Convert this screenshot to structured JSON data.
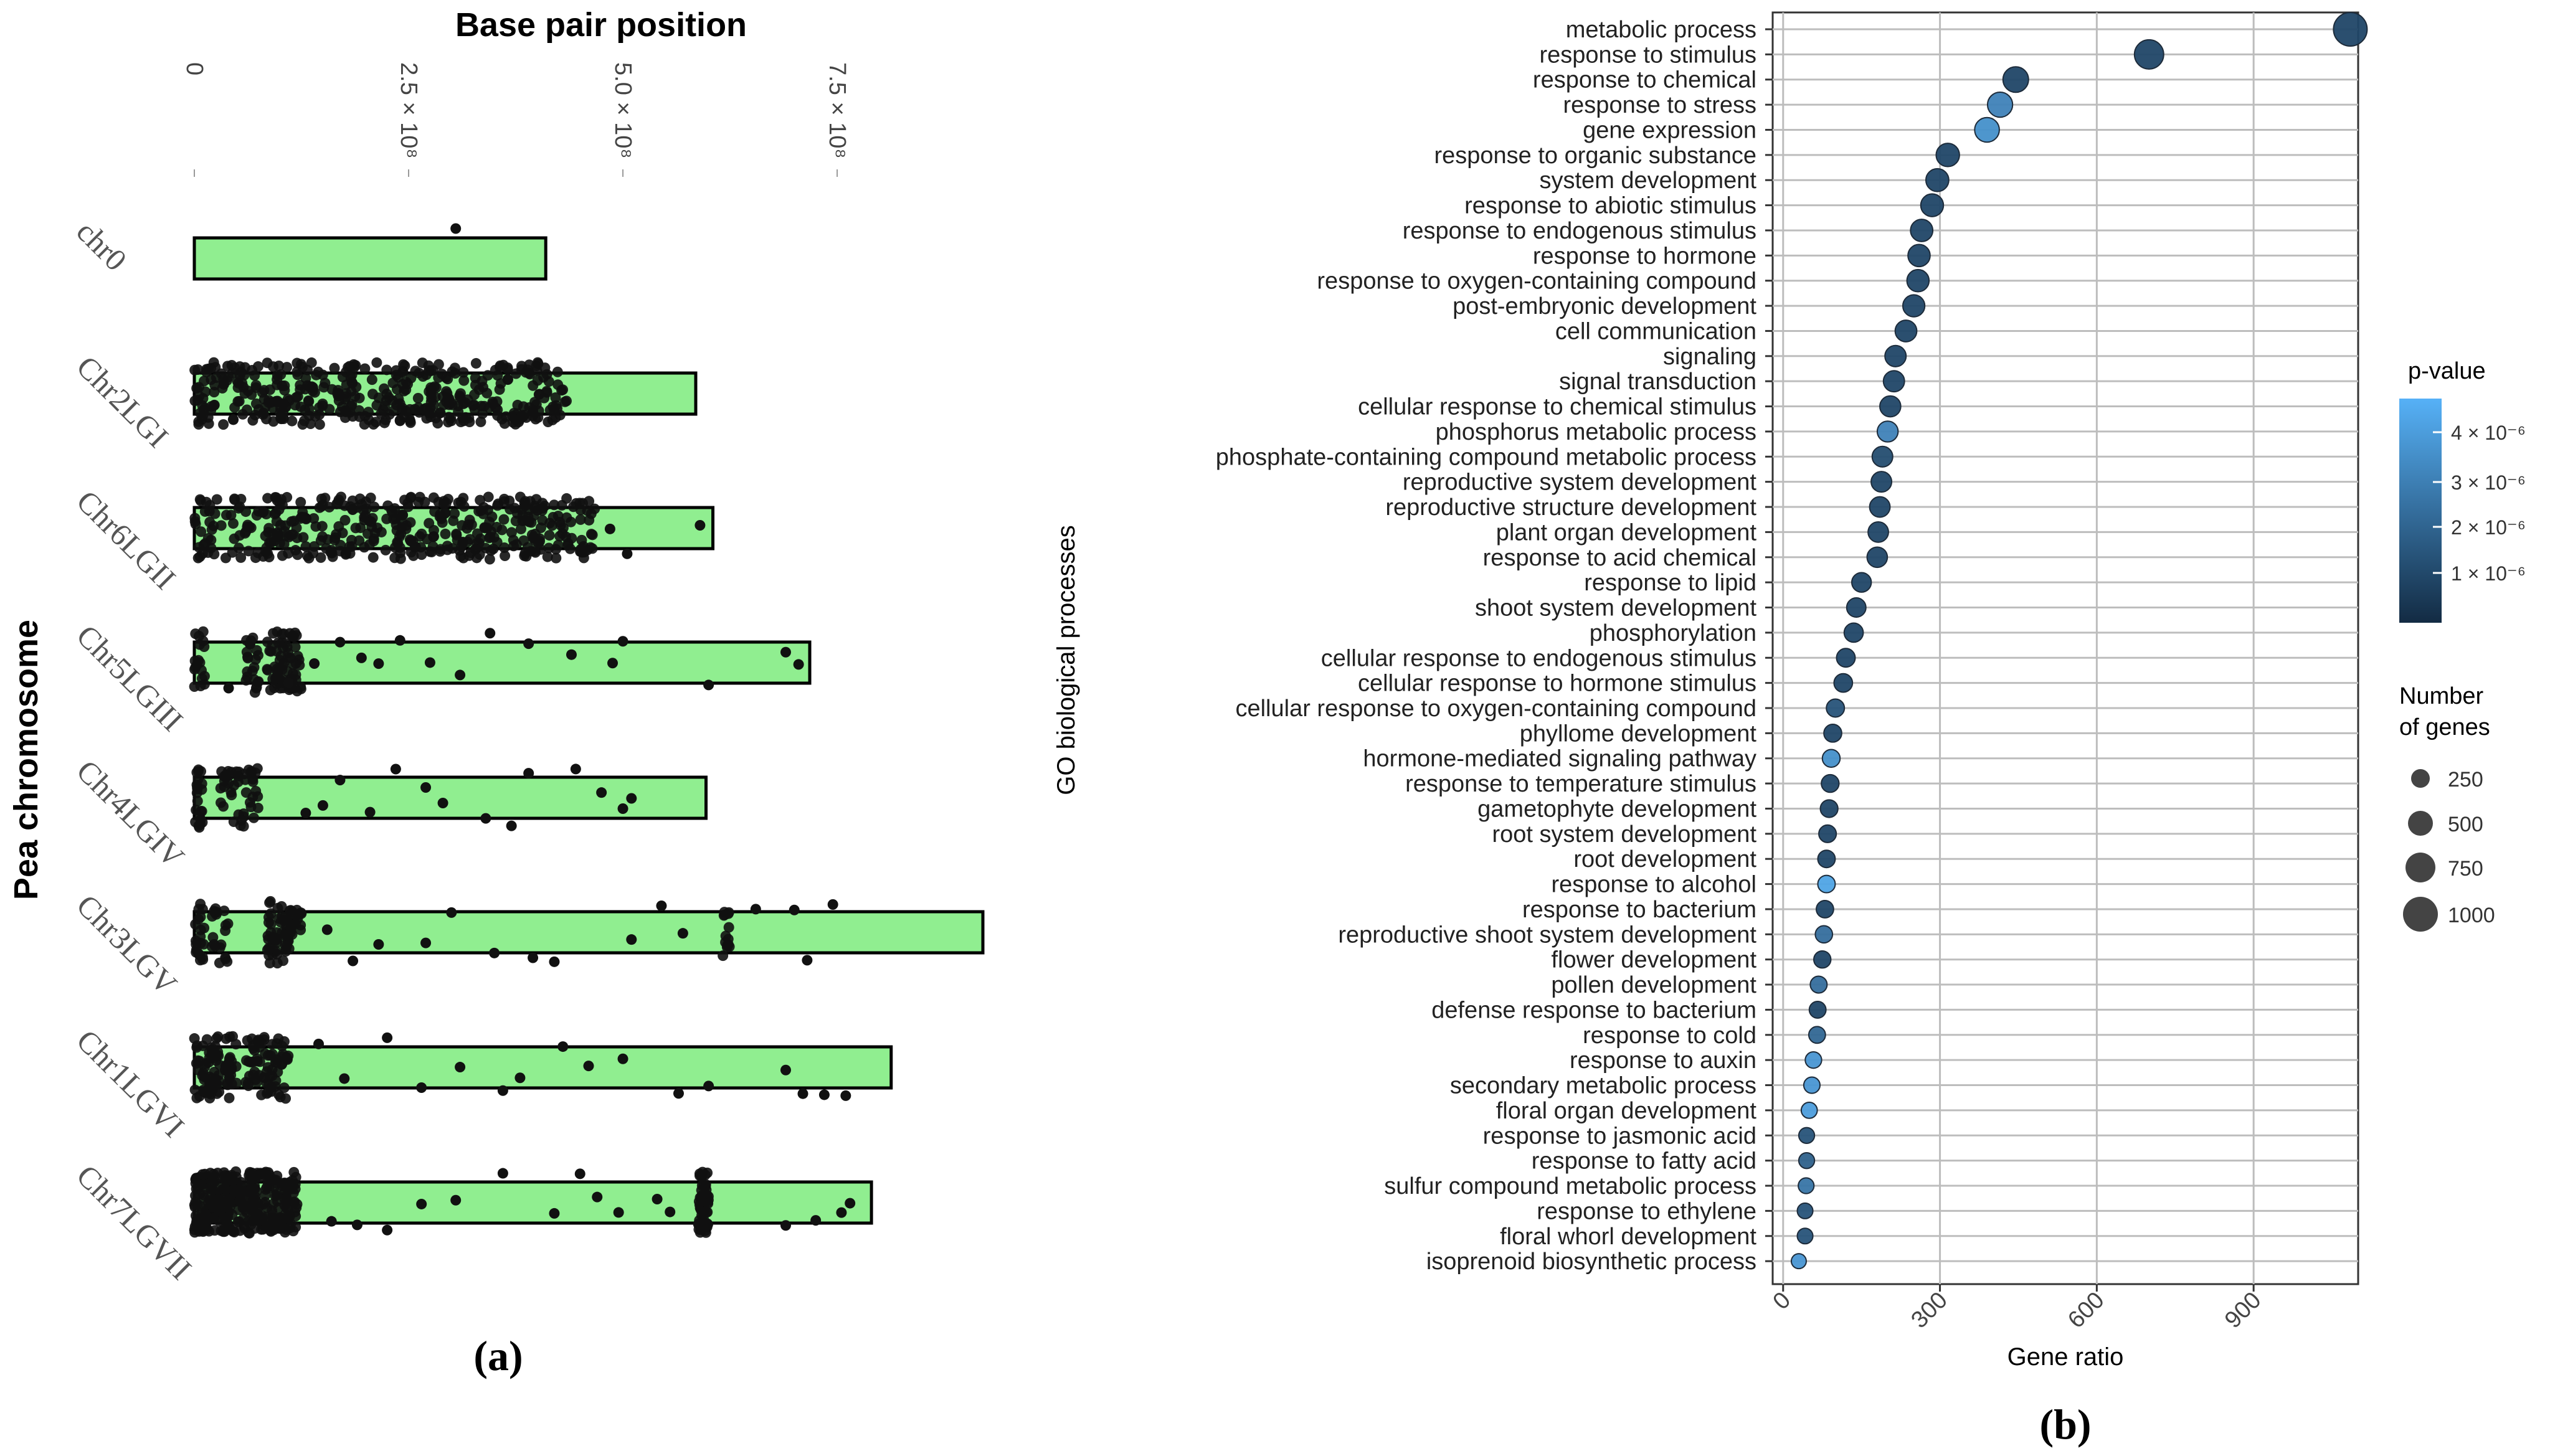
{
  "panel_a": {
    "label": "(a)",
    "chart_data": {
      "type": "scatter",
      "title": "Base pair position",
      "ylabel": "Pea chromosome",
      "x_ticks": [
        {
          "value": 0,
          "label": "0"
        },
        {
          "value": 250000000,
          "label": "2.5 × 10⁸"
        },
        {
          "value": 500000000,
          "label": "5.0 × 10⁸"
        },
        {
          "value": 750000000,
          "label": "7.5 × 10⁸"
        }
      ],
      "xlim": [
        0,
        920000000
      ],
      "chromosomes": [
        {
          "name": "chr0",
          "length": 410000000,
          "clusters": [],
          "points": [
            305000000
          ]
        },
        {
          "name": "Chr2LGI",
          "length": 585000000,
          "clusters": [
            {
              "from": 0,
              "to": 435000000,
              "count": 420
            }
          ],
          "points": []
        },
        {
          "name": "Chr6LGII",
          "length": 605000000,
          "clusters": [
            {
              "from": 0,
              "to": 470000000,
              "count": 420
            }
          ],
          "points": [
            590000000,
            505000000,
            485000000
          ]
        },
        {
          "name": "Chr5LGIII",
          "length": 718000000,
          "clusters": [
            {
              "from": 0,
              "to": 12000000,
              "count": 18
            },
            {
              "from": 60000000,
              "to": 75000000,
              "count": 20
            },
            {
              "from": 85000000,
              "to": 125000000,
              "count": 70
            }
          ],
          "points": [
            40000000,
            65000000,
            110000000,
            140000000,
            170000000,
            195000000,
            215000000,
            240000000,
            275000000,
            310000000,
            345000000,
            390000000,
            440000000,
            488000000,
            500000000,
            600000000,
            690000000,
            705000000
          ]
        },
        {
          "name": "Chr4LGIV",
          "length": 597000000,
          "clusters": [
            {
              "from": 0,
              "to": 10000000,
              "count": 22
            },
            {
              "from": 30000000,
              "to": 75000000,
              "count": 45
            }
          ],
          "points": [
            130000000,
            150000000,
            170000000,
            205000000,
            235000000,
            270000000,
            290000000,
            340000000,
            370000000,
            390000000,
            445000000,
            475000000,
            500000000,
            510000000
          ]
        },
        {
          "name": "Chr3LGV",
          "length": 920000000,
          "clusters": [
            {
              "from": 0,
              "to": 12000000,
              "count": 20
            },
            {
              "from": 20000000,
              "to": 40000000,
              "count": 20
            },
            {
              "from": 85000000,
              "to": 125000000,
              "count": 70
            },
            {
              "from": 615000000,
              "to": 625000000,
              "count": 14
            }
          ],
          "points": [
            155000000,
            185000000,
            215000000,
            270000000,
            300000000,
            350000000,
            395000000,
            420000000,
            510000000,
            545000000,
            570000000,
            655000000,
            700000000,
            715000000,
            745000000
          ]
        },
        {
          "name": "Chr1LGVI",
          "length": 813000000,
          "clusters": [
            {
              "from": 0,
              "to": 30000000,
              "count": 60
            },
            {
              "from": 35000000,
              "to": 50000000,
              "count": 25
            },
            {
              "from": 60000000,
              "to": 110000000,
              "count": 70
            }
          ],
          "points": [
            145000000,
            175000000,
            225000000,
            265000000,
            310000000,
            360000000,
            380000000,
            430000000,
            460000000,
            500000000,
            565000000,
            600000000,
            690000000,
            710000000,
            735000000,
            760000000
          ]
        },
        {
          "name": "Chr7LGVII",
          "length": 790000000,
          "clusters": [
            {
              "from": 0,
              "to": 35000000,
              "count": 110
            },
            {
              "from": 35000000,
              "to": 120000000,
              "count": 220
            },
            {
              "from": 588000000,
              "to": 600000000,
              "count": 60
            }
          ],
          "points": [
            160000000,
            190000000,
            225000000,
            265000000,
            305000000,
            360000000,
            420000000,
            450000000,
            470000000,
            495000000,
            540000000,
            555000000,
            690000000,
            725000000,
            755000000,
            765000000
          ]
        }
      ]
    }
  },
  "panel_b": {
    "label": "(b)",
    "chart_data": {
      "type": "scatter",
      "xlabel": "Gene ratio",
      "ylabel": "GO biological processes",
      "xlim": [
        -20,
        1100
      ],
      "x_ticks": [
        0,
        300,
        600,
        900
      ],
      "grid": true,
      "legend_color": {
        "title": "p-value",
        "ticks": [
          "4 × 10⁻⁶",
          "3 × 10⁻⁶",
          "2 × 10⁻⁶",
          "1 × 10⁻⁶"
        ],
        "low_color": "#132B43",
        "high_color": "#56B1F7"
      },
      "legend_size": {
        "title_line1": "Number",
        "title_line2": "of genes",
        "entries": [
          "250",
          "500",
          "750",
          "1000"
        ]
      },
      "categories": [
        "metabolic process",
        "response to stimulus",
        "response to chemical",
        "response to stress",
        "gene expression",
        "response to organic substance",
        "system development",
        "response to abiotic stimulus",
        "response to endogenous stimulus",
        "response to hormone",
        "response to oxygen-containing compound",
        "post-embryonic development",
        "cell communication",
        "signaling",
        "signal transduction",
        "cellular response to chemical stimulus",
        "phosphorus metabolic process",
        "phosphate-containing compound metabolic process",
        "reproductive system development",
        "reproductive structure development",
        "plant organ development",
        "response to acid chemical",
        "response to lipid",
        "shoot system development",
        "phosphorylation",
        "cellular response to endogenous stimulus",
        "cellular response to hormone stimulus",
        "cellular response to oxygen-containing compound",
        "phyllome development",
        "hormone-mediated signaling pathway",
        "response to temperature stimulus",
        "gametophyte development",
        "root system development",
        "root development",
        "response to alcohol",
        "response to bacterium",
        "reproductive shoot system development",
        "flower development",
        "pollen development",
        "defense response to bacterium",
        "response to cold",
        "response to auxin",
        "secondary metabolic process",
        "floral organ development",
        "response to jasmonic acid",
        "response to fatty acid",
        "sulfur compound metabolic process",
        "response to ethylene",
        "floral whorl development",
        "isoprenoid biosynthetic process"
      ],
      "gene_ratio": [
        1085,
        700,
        445,
        415,
        390,
        315,
        295,
        285,
        265,
        260,
        258,
        250,
        235,
        215,
        212,
        205,
        200,
        190,
        188,
        185,
        182,
        180,
        150,
        140,
        135,
        120,
        115,
        100,
        95,
        92,
        90,
        88,
        85,
        83,
        83,
        80,
        78,
        75,
        68,
        66,
        65,
        58,
        55,
        50,
        45,
        45,
        44,
        42,
        42,
        30
      ],
      "pvalue_scale": [
        0.2,
        0.2,
        0.2,
        0.65,
        0.75,
        0.2,
        0.2,
        0.2,
        0.2,
        0.2,
        0.2,
        0.2,
        0.2,
        0.2,
        0.2,
        0.2,
        0.65,
        0.25,
        0.2,
        0.2,
        0.2,
        0.2,
        0.2,
        0.2,
        0.2,
        0.2,
        0.2,
        0.3,
        0.2,
        0.75,
        0.2,
        0.2,
        0.2,
        0.2,
        0.9,
        0.2,
        0.5,
        0.2,
        0.5,
        0.2,
        0.45,
        0.8,
        0.8,
        0.85,
        0.3,
        0.4,
        0.55,
        0.3,
        0.3,
        0.8
      ],
      "gene_count": [
        1085,
        700,
        445,
        415,
        390,
        315,
        295,
        285,
        265,
        260,
        258,
        250,
        235,
        215,
        212,
        205,
        200,
        190,
        188,
        185,
        182,
        180,
        150,
        140,
        135,
        120,
        115,
        100,
        95,
        92,
        90,
        88,
        85,
        83,
        83,
        80,
        78,
        75,
        68,
        66,
        65,
        58,
        55,
        50,
        45,
        45,
        44,
        42,
        42,
        30
      ]
    }
  }
}
